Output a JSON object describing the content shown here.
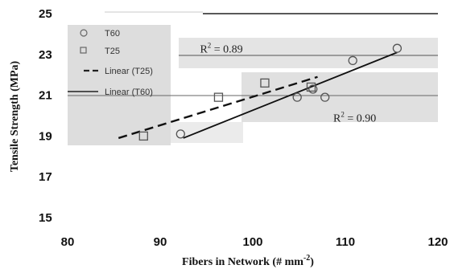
{
  "chart_data": {
    "type": "scatter",
    "xlabel_main": "Fibers in Network (# mm",
    "xlabel_sup": "-2",
    "xlabel_end": ")",
    "ylabel": "Tensile Strength (MPa)",
    "xlim": [
      80,
      120
    ],
    "ylim": [
      15,
      25
    ],
    "x_ticks": [
      "80",
      "90",
      "100",
      "110",
      "120"
    ],
    "y_ticks": [
      "15",
      "17",
      "19",
      "21",
      "23",
      "25"
    ],
    "series": [
      {
        "name": "T60",
        "marker": "circle",
        "points": [
          {
            "x": 92.2,
            "y": 19.1
          },
          {
            "x": 104.8,
            "y": 20.9
          },
          {
            "x": 106.5,
            "y": 21.3
          },
          {
            "x": 107.8,
            "y": 20.9
          },
          {
            "x": 110.8,
            "y": 22.7
          },
          {
            "x": 115.6,
            "y": 23.3
          }
        ]
      },
      {
        "name": "T25",
        "marker": "square",
        "points": [
          {
            "x": 88.2,
            "y": 19.0
          },
          {
            "x": 96.3,
            "y": 20.9
          },
          {
            "x": 101.3,
            "y": 21.6
          },
          {
            "x": 106.3,
            "y": 21.4
          }
        ]
      }
    ],
    "fits": [
      {
        "name": "Linear (T25)",
        "style": "dashed",
        "x": [
          85.5,
          107.0
        ],
        "y": [
          18.9,
          21.9
        ],
        "r2_label": "R",
        "r2_sup": "2",
        "r2_value": " = 0.89",
        "label_at": {
          "x": 94.3,
          "y": 23.1
        }
      },
      {
        "name": "Linear (T60)",
        "style": "solid",
        "x": [
          92.5,
          115.6
        ],
        "y": [
          18.9,
          23.1
        ],
        "r2_label": "R",
        "r2_sup": "2",
        "r2_value": " = 0.90",
        "label_at": {
          "x": 108.7,
          "y": 19.7
        }
      }
    ],
    "legend_labels": [
      "T60",
      "T25",
      "Linear (T25)",
      "Linear (T60)"
    ],
    "legend_placement": "top-left",
    "colors": {
      "markers": "#555555",
      "fit_lines": "#111111",
      "shading": "#d0d0d0",
      "text": "#111111"
    }
  }
}
